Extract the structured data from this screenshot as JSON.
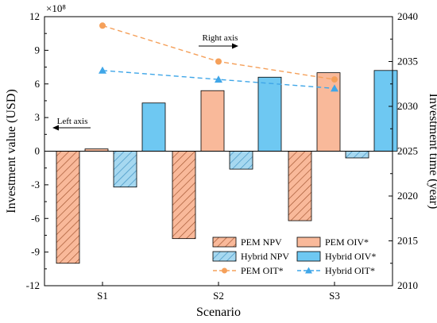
{
  "chart_data": {
    "type": "bar",
    "categories": [
      "S1",
      "S2",
      "S3"
    ],
    "xlabel": "Scenario",
    "ylabel": "Investment value (USD)",
    "y2label": "Investment time (year)",
    "y_multiplier": "×10⁸",
    "ylim": [
      -12,
      12
    ],
    "yticks": [
      -12,
      -9,
      -6,
      -3,
      0,
      3,
      6,
      9,
      12
    ],
    "y2lim": [
      2010,
      2040
    ],
    "y2ticks": [
      2010,
      2015,
      2020,
      2025,
      2030,
      2035,
      2040
    ],
    "bar_series": [
      {
        "name": "PEM NPV",
        "values": [
          -10.0,
          -7.8,
          -6.2
        ],
        "color": "#f4a582",
        "hatch": true
      },
      {
        "name": "PEM OIV*",
        "values": [
          0.2,
          5.4,
          7.0
        ],
        "color": "#f9b99a",
        "hatch": false
      },
      {
        "name": "Hybrid NPV",
        "values": [
          -3.2,
          -1.6,
          -0.6
        ],
        "color": "#92cdea",
        "hatch": true
      },
      {
        "name": "Hybrid OIV*",
        "values": [
          4.3,
          6.6,
          7.2
        ],
        "color": "#6ec8f2",
        "hatch": false
      }
    ],
    "line_series": [
      {
        "name": "PEM OIT*",
        "values": [
          2039,
          2035,
          2033
        ],
        "color": "#f5a05a",
        "marker": "circle",
        "axis": "right"
      },
      {
        "name": "Hybrid OIT*",
        "values": [
          2034,
          2033,
          2032
        ],
        "color": "#3fa6e8",
        "marker": "triangle",
        "axis": "right"
      }
    ],
    "annotations": {
      "right_axis": "Right axis",
      "left_axis": "Left axis"
    },
    "legend_position": "bottom-right",
    "grid": false
  }
}
